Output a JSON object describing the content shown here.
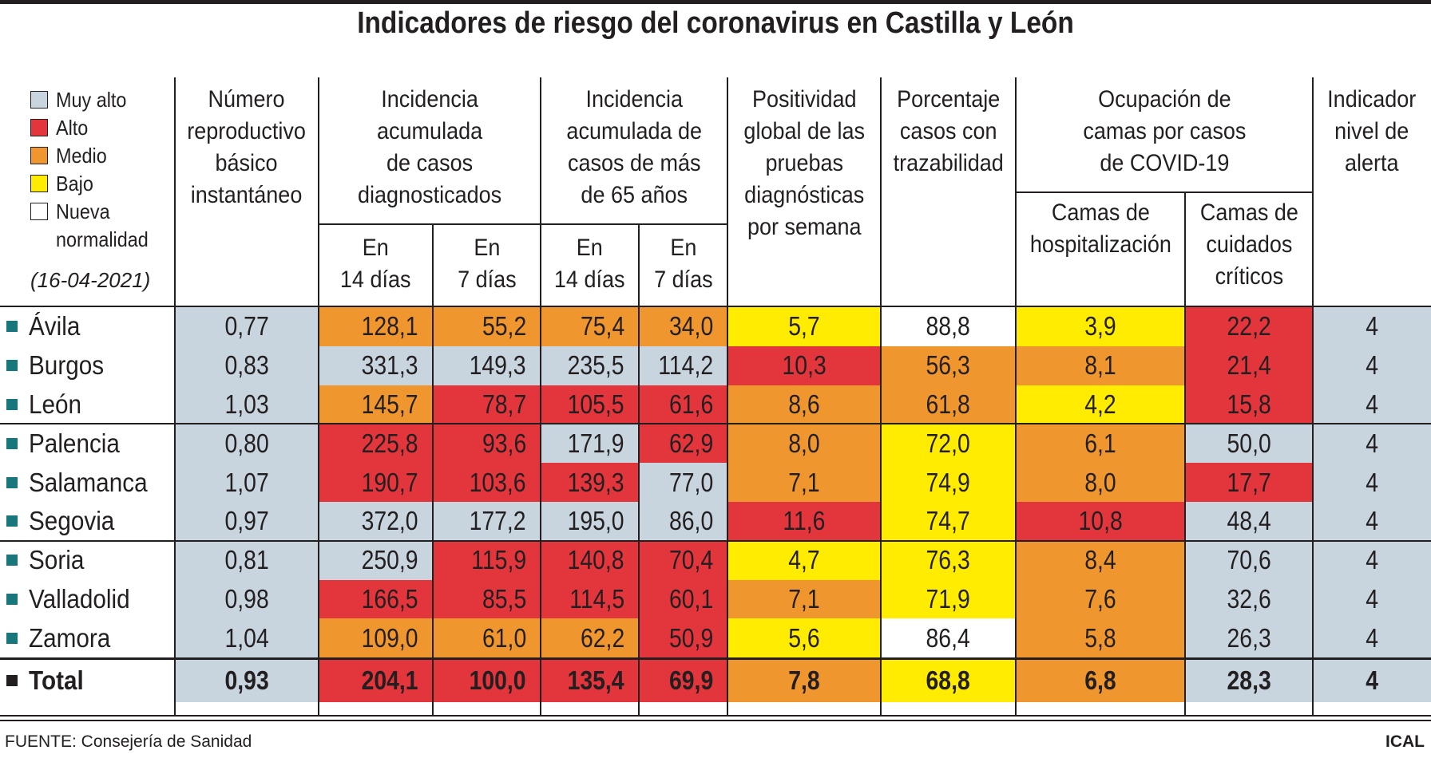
{
  "title": "Indicadores de riesgo del coronavirus en Castilla y León",
  "legend": {
    "items": [
      {
        "key": "muy_alto",
        "label": "Muy alto"
      },
      {
        "key": "alto",
        "label": "Alto"
      },
      {
        "key": "medio",
        "label": "Medio"
      },
      {
        "key": "bajo",
        "label": "Bajo"
      },
      {
        "key": "nueva",
        "label": "Nueva\nnormalidad"
      }
    ],
    "date": "(16-04-2021)"
  },
  "colors": {
    "muy_alto": "#c8d5df",
    "alto": "#e2353c",
    "medio": "#f0962f",
    "bajo": "#ffec00",
    "nueva": "#ffffff",
    "bullet": "#17777a"
  },
  "headers": {
    "r": "Número\nreproductivo\nbásico\ninstantáneo",
    "ia": "Incidencia\nacumulada\nde casos\ndiagnosticados",
    "i65": "Incidencia\nacumulada de\ncasos de más\nde 65 años",
    "pos": "Positividad\nglobal de las\npruebas\ndiagnósticas\npor semana",
    "traz": "Porcentaje\ncasos con\ntrazabilidad",
    "ocup": "Ocupación de\ncamas por casos\nde COVID-19",
    "nivel": "Indicador\nnivel de\nalerta",
    "d14": "En\n14 días",
    "d7": "En\n7 días",
    "hosp": "Camas de\nhospitalización",
    "uci": "Camas de\ncuidados\ncríticos"
  },
  "rows": [
    {
      "name": "Ávila",
      "values": [
        "0,77",
        "128,1",
        "55,2",
        "75,4",
        "34,0",
        "5,7",
        "88,8",
        "3,9",
        "22,2",
        "4"
      ],
      "levels": [
        "muy_alto",
        "medio",
        "medio",
        "medio",
        "medio",
        "bajo",
        "nueva",
        "bajo",
        "alto",
        "muy_alto"
      ]
    },
    {
      "name": "Burgos",
      "values": [
        "0,83",
        "331,3",
        "149,3",
        "235,5",
        "114,2",
        "10,3",
        "56,3",
        "8,1",
        "21,4",
        "4"
      ],
      "levels": [
        "muy_alto",
        "muy_alto",
        "muy_alto",
        "muy_alto",
        "muy_alto",
        "alto",
        "medio",
        "medio",
        "alto",
        "muy_alto"
      ]
    },
    {
      "name": "León",
      "values": [
        "1,03",
        "145,7",
        "78,7",
        "105,5",
        "61,6",
        "8,6",
        "61,8",
        "4,2",
        "15,8",
        "4"
      ],
      "levels": [
        "muy_alto",
        "medio",
        "alto",
        "alto",
        "alto",
        "medio",
        "medio",
        "bajo",
        "alto",
        "muy_alto"
      ]
    },
    {
      "name": "Palencia",
      "values": [
        "0,80",
        "225,8",
        "93,6",
        "171,9",
        "62,9",
        "8,0",
        "72,0",
        "6,1",
        "50,0",
        "4"
      ],
      "levels": [
        "muy_alto",
        "alto",
        "alto",
        "muy_alto",
        "alto",
        "medio",
        "bajo",
        "medio",
        "muy_alto",
        "muy_alto"
      ]
    },
    {
      "name": "Salamanca",
      "values": [
        "1,07",
        "190,7",
        "103,6",
        "139,3",
        "77,0",
        "7,1",
        "74,9",
        "8,0",
        "17,7",
        "4"
      ],
      "levels": [
        "muy_alto",
        "alto",
        "alto",
        "alto",
        "muy_alto",
        "medio",
        "bajo",
        "medio",
        "alto",
        "muy_alto"
      ]
    },
    {
      "name": "Segovia",
      "values": [
        "0,97",
        "372,0",
        "177,2",
        "195,0",
        "86,0",
        "11,6",
        "74,7",
        "10,8",
        "48,4",
        "4"
      ],
      "levels": [
        "muy_alto",
        "muy_alto",
        "muy_alto",
        "muy_alto",
        "muy_alto",
        "alto",
        "bajo",
        "alto",
        "muy_alto",
        "muy_alto"
      ]
    },
    {
      "name": "Soria",
      "values": [
        "0,81",
        "250,9",
        "115,9",
        "140,8",
        "70,4",
        "4,7",
        "76,3",
        "8,4",
        "70,6",
        "4"
      ],
      "levels": [
        "muy_alto",
        "muy_alto",
        "alto",
        "alto",
        "alto",
        "bajo",
        "bajo",
        "medio",
        "muy_alto",
        "muy_alto"
      ]
    },
    {
      "name": "Valladolid",
      "values": [
        "0,98",
        "166,5",
        "85,5",
        "114,5",
        "60,1",
        "7,1",
        "71,9",
        "7,6",
        "32,6",
        "4"
      ],
      "levels": [
        "muy_alto",
        "alto",
        "alto",
        "alto",
        "alto",
        "medio",
        "bajo",
        "medio",
        "muy_alto",
        "muy_alto"
      ]
    },
    {
      "name": "Zamora",
      "values": [
        "1,04",
        "109,0",
        "61,0",
        "62,2",
        "50,9",
        "5,6",
        "86,4",
        "5,8",
        "26,3",
        "4"
      ],
      "levels": [
        "muy_alto",
        "medio",
        "medio",
        "medio",
        "alto",
        "bajo",
        "nueva",
        "medio",
        "muy_alto",
        "muy_alto"
      ]
    }
  ],
  "total": {
    "name": "Total",
    "values": [
      "0,93",
      "204,1",
      "100,0",
      "135,4",
      "69,9",
      "7,8",
      "68,8",
      "6,8",
      "28,3",
      "4"
    ],
    "levels": [
      "muy_alto",
      "alto",
      "alto",
      "alto",
      "alto",
      "medio",
      "bajo",
      "medio",
      "muy_alto",
      "muy_alto"
    ]
  },
  "footer": {
    "source": "FUENTE: Consejería de Sanidad",
    "credit": "ICAL"
  }
}
